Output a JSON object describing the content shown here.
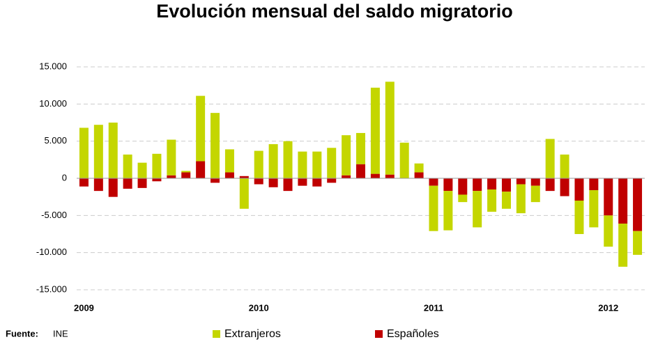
{
  "chart_data": {
    "type": "bar",
    "stacked": true,
    "title": "Evolución mensual del saldo migratorio",
    "categories": [
      "2009",
      null,
      null,
      null,
      null,
      null,
      null,
      null,
      null,
      null,
      null,
      null,
      "2010",
      null,
      null,
      null,
      null,
      null,
      null,
      null,
      null,
      null,
      null,
      null,
      "2011",
      null,
      null,
      null,
      null,
      null,
      null,
      null,
      null,
      null,
      null,
      null,
      "2012",
      null,
      null
    ],
    "series": [
      {
        "name": "Extranjeros",
        "color": "#c4d600",
        "values": [
          6800,
          7200,
          7500,
          3200,
          2100,
          3300,
          4800,
          200,
          8800,
          8800,
          3100,
          -4100,
          3700,
          4600,
          5000,
          3600,
          3600,
          4100,
          5400,
          4200,
          11600,
          12500,
          4800,
          1200,
          -6100,
          -5300,
          -1000,
          -4900,
          -3000,
          -2300,
          -3900,
          -2200,
          5300,
          3200,
          -4500,
          -5000,
          -4200,
          -5800,
          -3200
        ]
      },
      {
        "name": "Españoles",
        "color": "#c00000",
        "values": [
          -1100,
          -1700,
          -2500,
          -1400,
          -1300,
          -400,
          400,
          800,
          2300,
          -600,
          800,
          300,
          -800,
          -1200,
          -1700,
          -1000,
          -1100,
          -600,
          400,
          1900,
          600,
          500,
          0,
          800,
          -1000,
          -1700,
          -2200,
          -1700,
          -1500,
          -1800,
          -800,
          -1000,
          -1700,
          -2400,
          -3000,
          -1600,
          -5000,
          -6100,
          -7100
        ]
      }
    ],
    "ylim": [
      -15000,
      15000
    ],
    "yticks": [
      {
        "value": -15000,
        "label": "-15.000"
      },
      {
        "value": -10000,
        "label": "-10.000"
      },
      {
        "value": -5000,
        "label": "-5.000"
      },
      0,
      {
        "value": 5000,
        "label": "5.000"
      },
      {
        "value": 10000,
        "label": "10.000"
      },
      {
        "value": 15000,
        "label": "15.000"
      }
    ],
    "grid": true,
    "legend": "bottom",
    "source": {
      "label": "Fuente:",
      "text": "INE"
    }
  }
}
